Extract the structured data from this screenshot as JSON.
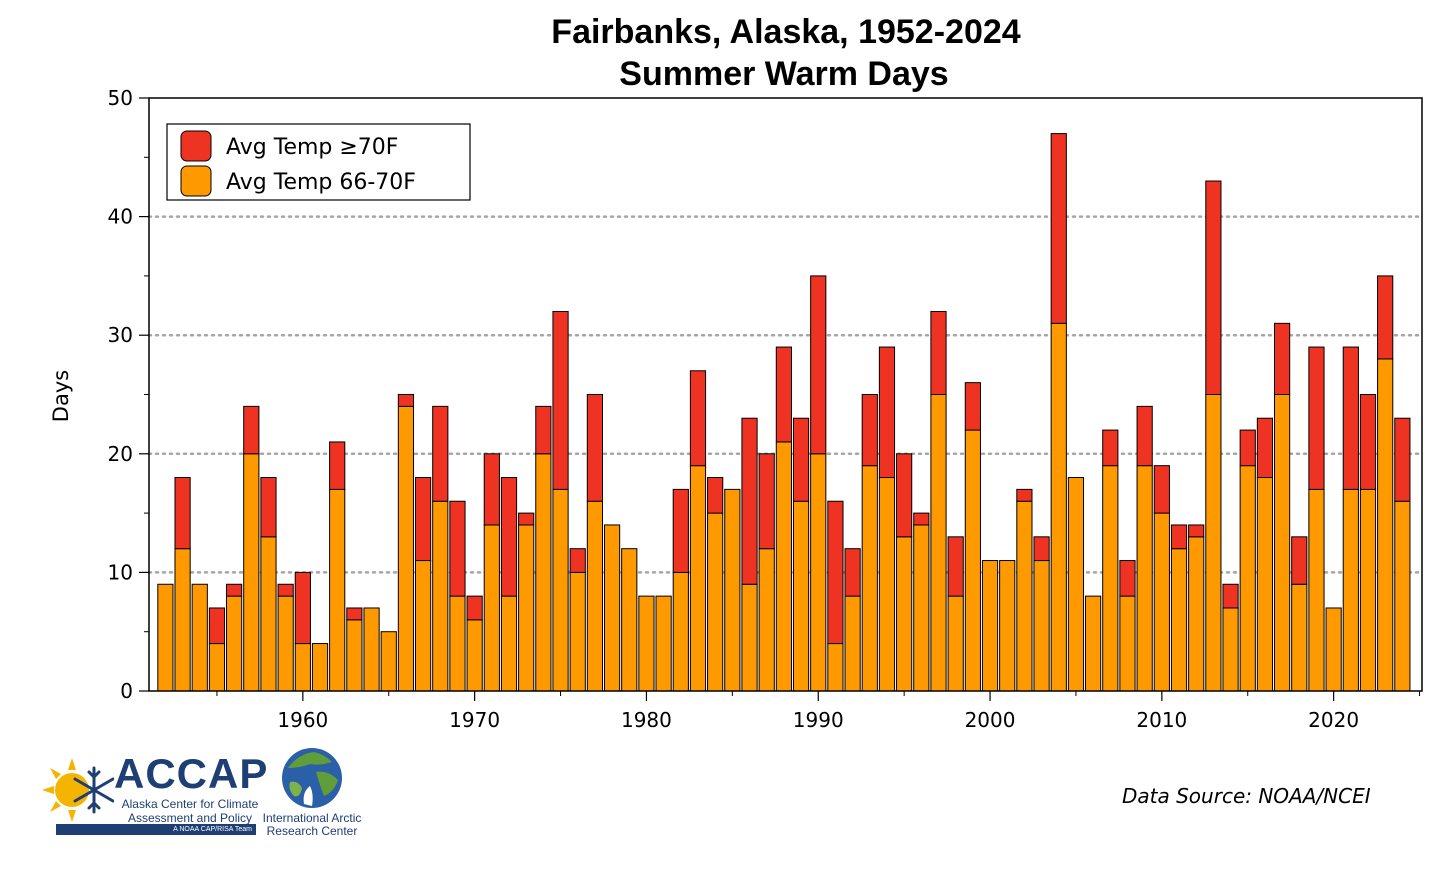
{
  "chart_data": {
    "type": "bar",
    "stacked": true,
    "title": [
      "Fairbanks, Alaska, 1952-2024",
      "Summer Warm Days"
    ],
    "ylabel": "Days",
    "xlabel": "",
    "ylim": [
      0,
      50
    ],
    "yticks": [
      0,
      10,
      20,
      30,
      40,
      50
    ],
    "xticks": [
      1960,
      1970,
      1980,
      1990,
      2000,
      2010,
      2020
    ],
    "grid": "horizontal dotted at 10, 20, 30, 40",
    "legend_position": "top-left",
    "x": [
      1952,
      1953,
      1954,
      1955,
      1956,
      1957,
      1958,
      1959,
      1960,
      1961,
      1962,
      1963,
      1964,
      1965,
      1966,
      1967,
      1968,
      1969,
      1970,
      1971,
      1972,
      1973,
      1974,
      1975,
      1976,
      1977,
      1978,
      1979,
      1980,
      1981,
      1982,
      1983,
      1984,
      1985,
      1986,
      1987,
      1988,
      1989,
      1990,
      1991,
      1992,
      1993,
      1994,
      1995,
      1996,
      1997,
      1998,
      1999,
      2000,
      2001,
      2002,
      2003,
      2004,
      2005,
      2006,
      2007,
      2008,
      2009,
      2010,
      2011,
      2012,
      2013,
      2014,
      2015,
      2016,
      2017,
      2018,
      2019,
      2020,
      2021,
      2022,
      2023,
      2024
    ],
    "series": [
      {
        "name": "Avg Temp 66-70F",
        "color": "#ff9900",
        "values": [
          9,
          12,
          9,
          4,
          8,
          20,
          13,
          8,
          4,
          4,
          17,
          6,
          7,
          5,
          24,
          11,
          16,
          8,
          6,
          14,
          8,
          14,
          20,
          17,
          10,
          16,
          14,
          12,
          8,
          8,
          10,
          19,
          15,
          17,
          9,
          12,
          21,
          16,
          20,
          4,
          8,
          19,
          18,
          13,
          14,
          25,
          8,
          22,
          11,
          11,
          16,
          11,
          31,
          18,
          8,
          19,
          8,
          19,
          15,
          12,
          13,
          25,
          7,
          19,
          18,
          25,
          9,
          17,
          7,
          17,
          17,
          28,
          16
        ]
      },
      {
        "name": "Avg Temp ≥70F",
        "color": "#ee3322",
        "values": [
          0,
          6,
          0,
          3,
          1,
          4,
          5,
          1,
          6,
          0,
          4,
          1,
          0,
          0,
          1,
          7,
          8,
          8,
          2,
          6,
          10,
          1,
          4,
          15,
          2,
          9,
          0,
          0,
          0,
          0,
          7,
          8,
          3,
          0,
          14,
          8,
          8,
          7,
          15,
          12,
          4,
          6,
          11,
          7,
          1,
          7,
          5,
          4,
          0,
          0,
          1,
          2,
          16,
          0,
          0,
          3,
          3,
          5,
          4,
          2,
          1,
          18,
          2,
          3,
          5,
          6,
          4,
          12,
          0,
          12,
          8,
          7,
          7
        ]
      }
    ]
  },
  "legend": {
    "hot_label": "Avg Temp ≥70F",
    "warm_label": "Avg Temp 66-70F"
  },
  "source": "Data Source: NOAA/NCEI",
  "logos": {
    "accap_name": "ACCAP",
    "accap_subtitle": "Alaska Center for Climate Assessment and Policy",
    "accap_tagline": "A NOAA CAP/RISA Team",
    "iarc_name": "International Arctic Research Center"
  }
}
